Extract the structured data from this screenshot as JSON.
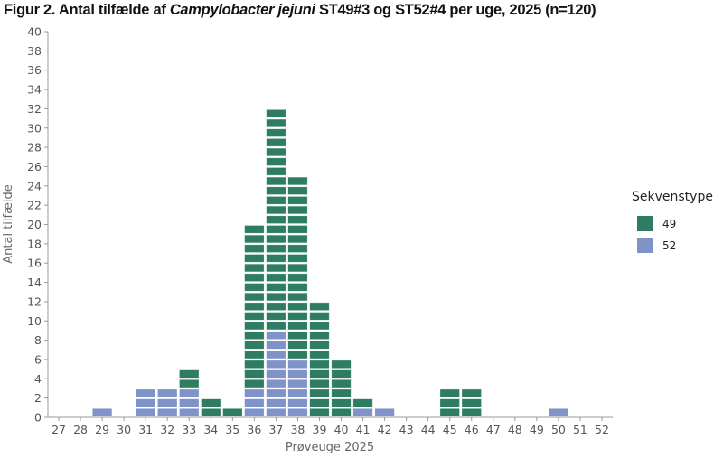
{
  "title": {
    "prefix": "Figur 2. Antal tilfælde af ",
    "italic": "Campylobacter jejuni",
    "suffix": " ST49#3 og ST52#4 per uge, 2025 (n=120)"
  },
  "colors": {
    "st49": "#2e7d62",
    "st52": "#7f93c9",
    "axis": "#999999"
  },
  "chart_data": {
    "type": "bar",
    "stacked": true,
    "unit_blocks": true,
    "title": "Figur 2. Antal tilfælde af Campylobacter jejuni ST49#3 og ST52#4 per uge, 2025 (n=120)",
    "xlabel": "Prøveuge 2025",
    "ylabel": "Antal tilfælde",
    "ylim": [
      0,
      40
    ],
    "yticks": [
      0,
      2,
      4,
      6,
      8,
      10,
      12,
      14,
      16,
      18,
      20,
      22,
      24,
      26,
      28,
      30,
      32,
      34,
      36,
      38,
      40
    ],
    "categories": [
      "27",
      "28",
      "29",
      "30",
      "31",
      "32",
      "33",
      "34",
      "35",
      "36",
      "37",
      "38",
      "39",
      "40",
      "41",
      "42",
      "43",
      "44",
      "45",
      "46",
      "47",
      "48",
      "49",
      "50",
      "51",
      "52"
    ],
    "series": [
      {
        "name": "52",
        "color": "#7f93c9",
        "values": [
          0,
          0,
          1,
          0,
          3,
          3,
          3,
          0,
          0,
          3,
          9,
          6,
          0,
          0,
          1,
          1,
          0,
          0,
          0,
          0,
          0,
          0,
          0,
          1,
          0,
          0
        ]
      },
      {
        "name": "49",
        "color": "#2e7d62",
        "values": [
          0,
          0,
          0,
          0,
          0,
          0,
          2,
          2,
          1,
          17,
          23,
          19,
          12,
          6,
          1,
          0,
          0,
          0,
          3,
          3,
          0,
          0,
          0,
          0,
          0,
          0
        ]
      }
    ],
    "legend": {
      "title": "Sekvenstype",
      "position": "right",
      "entries": [
        "49",
        "52"
      ]
    },
    "grid": false
  }
}
